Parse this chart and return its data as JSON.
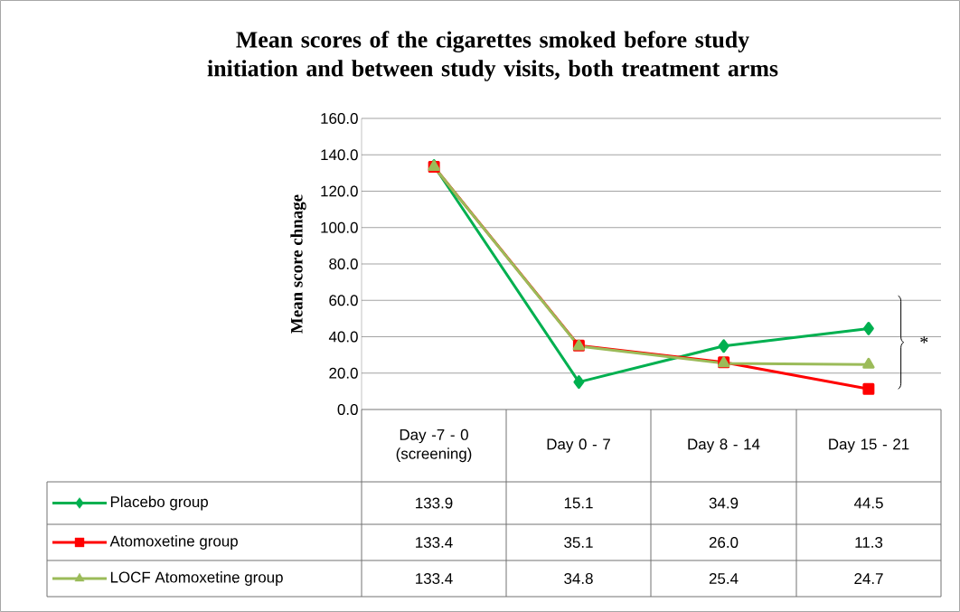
{
  "chart_data": {
    "type": "line",
    "title": "Mean scores of the cigarettes smoked before study initiation and between study visits,  both treatment arms",
    "ylabel": "Mean score chnage",
    "categories": [
      "Day -7 - 0 (screening)",
      "Day 0 - 7",
      "Day 8 - 14",
      "Day 15 - 21"
    ],
    "series": [
      {
        "name": "Placebo group",
        "color": "#00b050",
        "marker": "diamond",
        "values": [
          133.9,
          15.1,
          34.9,
          44.5
        ],
        "value_labels": [
          "133.9",
          "15.1",
          "34.9",
          "44.5"
        ]
      },
      {
        "name": "Atomoxetine group",
        "color": "#ff0000",
        "marker": "square",
        "values": [
          133.4,
          35.1,
          26.0,
          11.3
        ],
        "value_labels": [
          "133.4",
          "35.1",
          "26.0",
          "11.3"
        ]
      },
      {
        "name": "LOCF Atomoxetine group",
        "color": "#9bbb59",
        "marker": "triangle",
        "values": [
          133.4,
          34.8,
          25.4,
          24.7
        ],
        "value_labels": [
          "133.4",
          "34.8",
          "25.4",
          "24.7"
        ]
      }
    ],
    "ylim": [
      0,
      160
    ],
    "yticks": [
      {
        "value": 0,
        "label": "0.0"
      },
      {
        "value": 20,
        "label": "20.0"
      },
      {
        "value": 40,
        "label": "40.0"
      },
      {
        "value": 60,
        "label": "60.0"
      },
      {
        "value": 80,
        "label": "80.0"
      },
      {
        "value": 100,
        "label": "100.0"
      },
      {
        "value": 120,
        "label": "120.0"
      },
      {
        "value": 140,
        "label": "140.0"
      },
      {
        "value": 160,
        "label": "160.0"
      }
    ],
    "grid": "y",
    "legend": "bottom left",
    "line_style": "solid",
    "annotations": [
      "*"
    ]
  }
}
